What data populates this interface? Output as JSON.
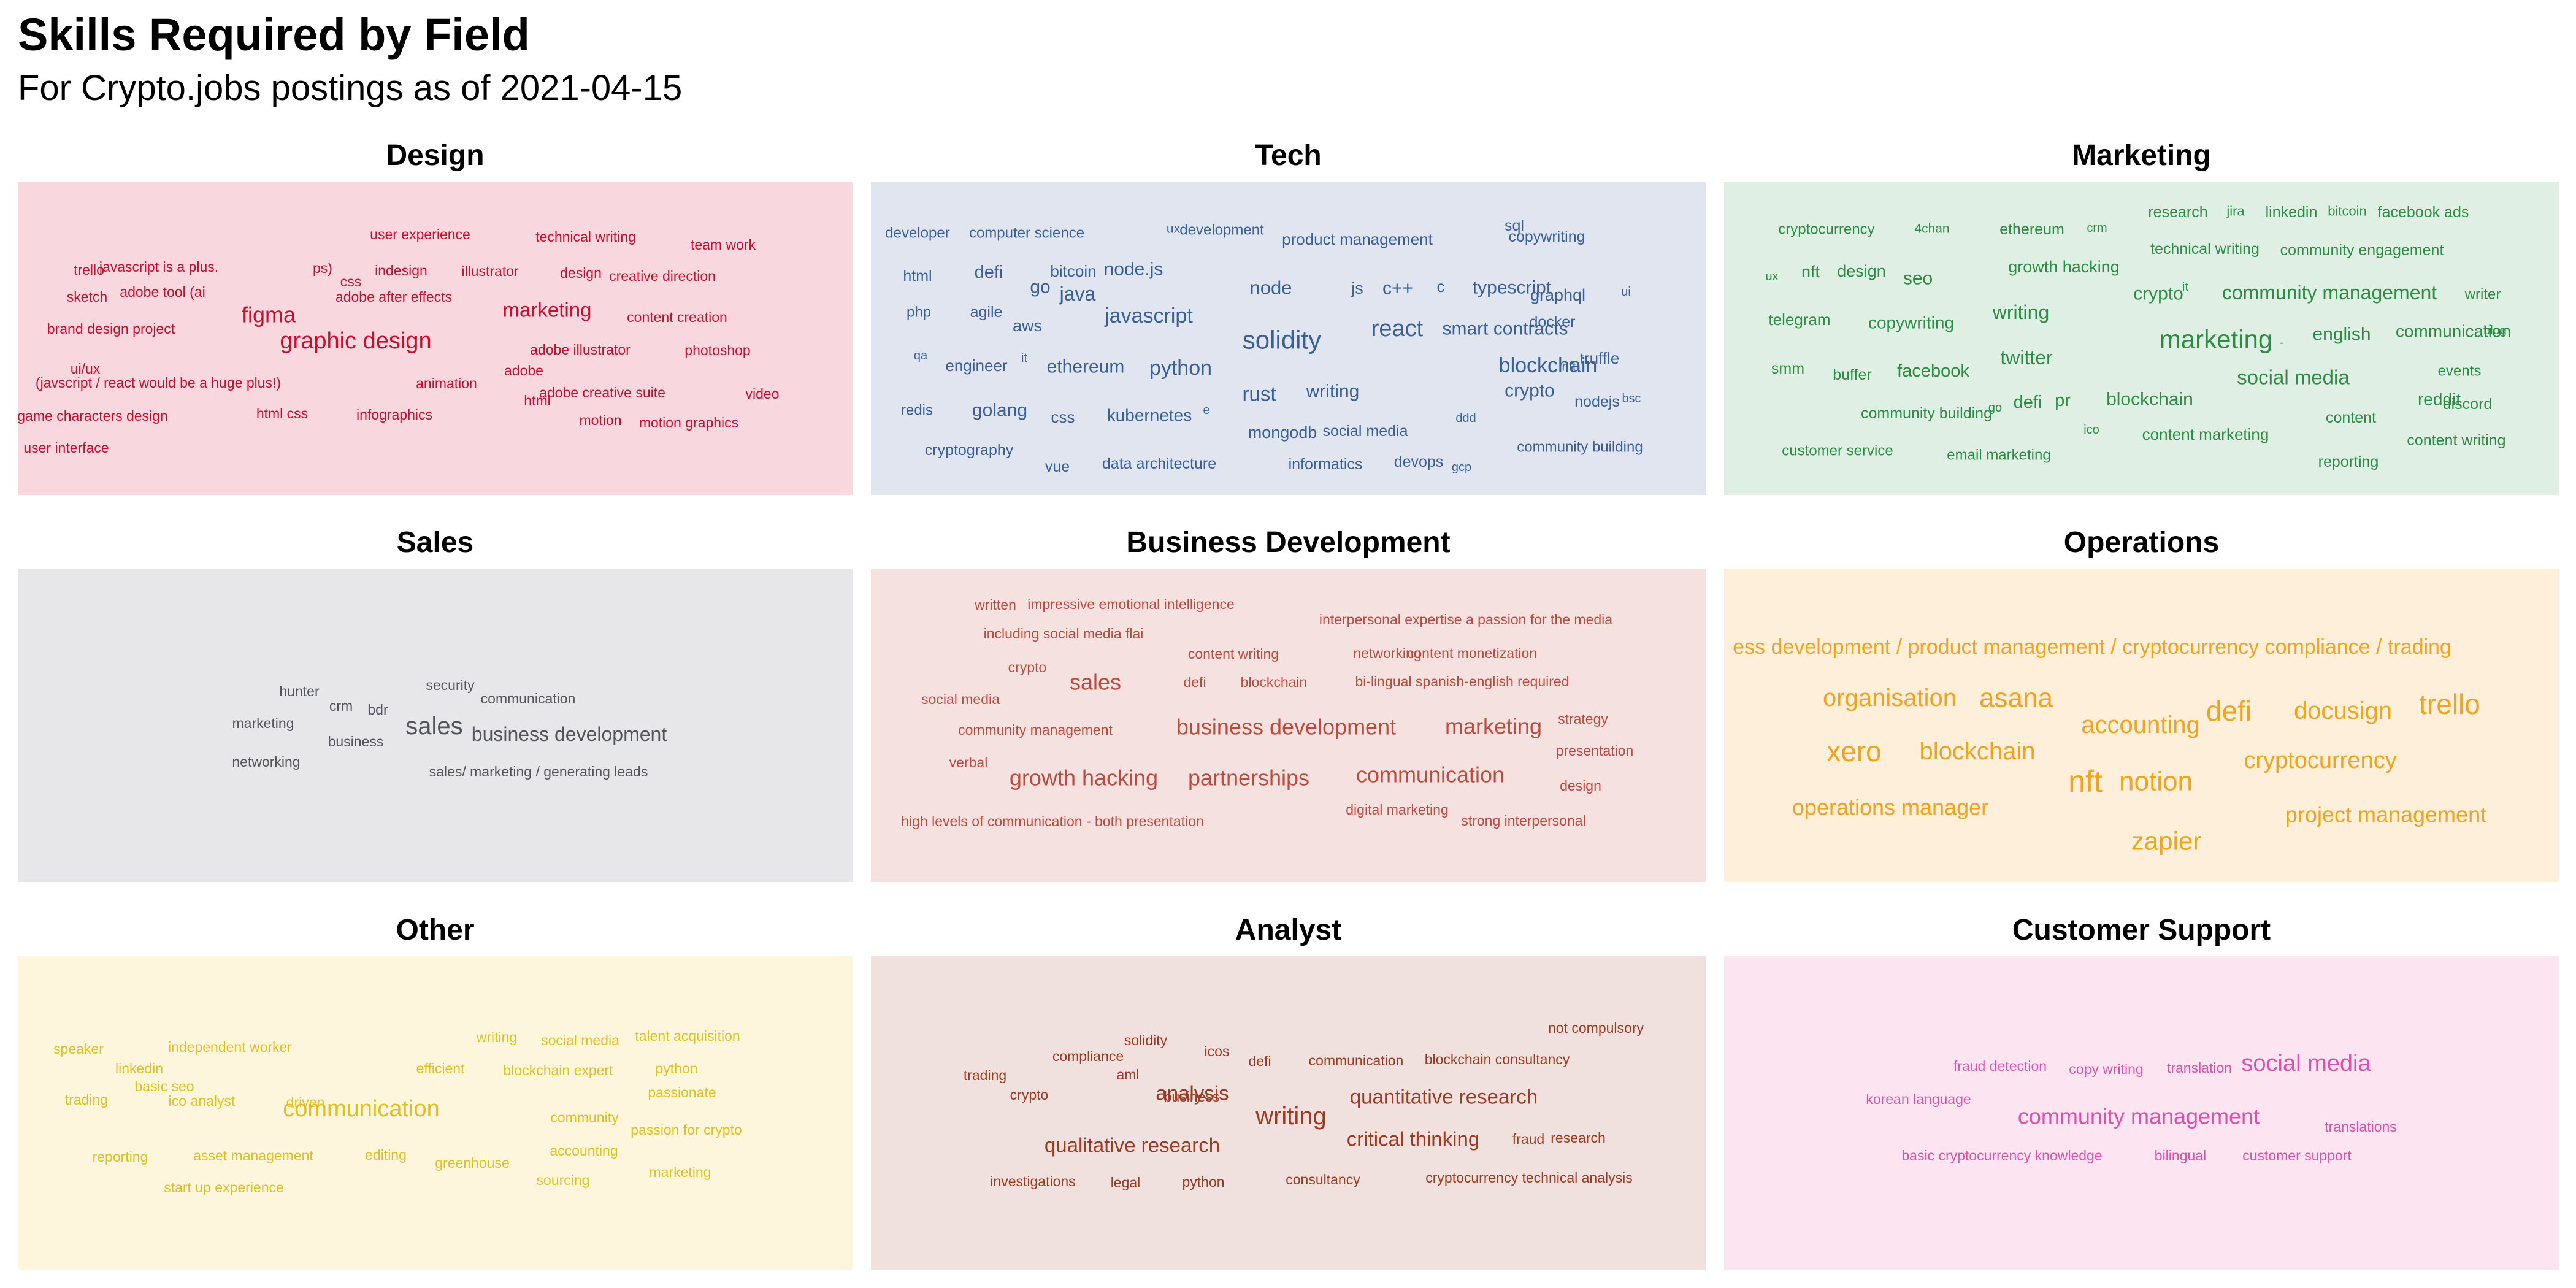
{
  "title": "Skills Required by Field",
  "subtitle": "For Crypto.jobs postings as of 2021-04-15",
  "chart_data": [
    {
      "type": "wordcloud",
      "title": "Design",
      "bg": "#f8d7de",
      "color": "#c8102e",
      "words": [
        {
          "text": "user experience",
          "size": 23
        },
        {
          "text": "technical writing",
          "size": 23
        },
        {
          "text": "team work",
          "size": 23
        },
        {
          "text": "trello",
          "size": 23
        },
        {
          "text": "javascript is a plus.",
          "size": 23
        },
        {
          "text": "ps)",
          "size": 23
        },
        {
          "text": "indesign",
          "size": 23
        },
        {
          "text": "illustrator",
          "size": 23
        },
        {
          "text": "design",
          "size": 23
        },
        {
          "text": "css",
          "size": 23
        },
        {
          "text": "creative direction",
          "size": 23
        },
        {
          "text": "adobe tool (ai",
          "size": 23
        },
        {
          "text": "sketch",
          "size": 23
        },
        {
          "text": "adobe after effects",
          "size": 23
        },
        {
          "text": "figma",
          "size": 36
        },
        {
          "text": "marketing",
          "size": 33
        },
        {
          "text": "content creation",
          "size": 23
        },
        {
          "text": "brand design project",
          "size": 23
        },
        {
          "text": "graphic design",
          "size": 38
        },
        {
          "text": "adobe illustrator",
          "size": 23
        },
        {
          "text": "photoshop",
          "size": 23
        },
        {
          "text": "ui/ux",
          "size": 23
        },
        {
          "text": "adobe",
          "size": 23
        },
        {
          "text": "(javscript / react would be a huge plus!)",
          "size": 23
        },
        {
          "text": "animation",
          "size": 23
        },
        {
          "text": "adobe creative suite",
          "size": 23
        },
        {
          "text": "video",
          "size": 23
        },
        {
          "text": "html",
          "size": 23
        },
        {
          "text": "game characters design",
          "size": 23
        },
        {
          "text": "html css",
          "size": 23
        },
        {
          "text": "infographics",
          "size": 23
        },
        {
          "text": "motion",
          "size": 23
        },
        {
          "text": "motion graphics",
          "size": 23
        },
        {
          "text": "user interface",
          "size": 23
        }
      ]
    },
    {
      "type": "wordcloud",
      "title": "Tech",
      "bg": "#e1e5ef",
      "color": "#3a5f96",
      "words": [
        {
          "text": "developer",
          "size": 24
        },
        {
          "text": "computer science",
          "size": 24
        },
        {
          "text": "ux",
          "size": 21
        },
        {
          "text": "development",
          "size": 24
        },
        {
          "text": "product management",
          "size": 26
        },
        {
          "text": "sql",
          "size": 25
        },
        {
          "text": "copywriting",
          "size": 25
        },
        {
          "text": "html",
          "size": 25
        },
        {
          "text": "defi",
          "size": 29
        },
        {
          "text": "bitcoin",
          "size": 26
        },
        {
          "text": "node.js",
          "size": 30
        },
        {
          "text": "go",
          "size": 30
        },
        {
          "text": "java",
          "size": 32
        },
        {
          "text": "node",
          "size": 31
        },
        {
          "text": "js",
          "size": 27
        },
        {
          "text": "c++",
          "size": 30
        },
        {
          "text": "c",
          "size": 26
        },
        {
          "text": "typescript",
          "size": 30
        },
        {
          "text": "graphql",
          "size": 27
        },
        {
          "text": "ui",
          "size": 20
        },
        {
          "text": "php",
          "size": 24
        },
        {
          "text": "agile",
          "size": 25
        },
        {
          "text": "javascript",
          "size": 34
        },
        {
          "text": "aws",
          "size": 27
        },
        {
          "text": "react",
          "size": 38
        },
        {
          "text": "solidity",
          "size": 42
        },
        {
          "text": "smart contracts",
          "size": 30
        },
        {
          "text": "docker",
          "size": 25
        },
        {
          "text": "qa",
          "size": 20
        },
        {
          "text": "engineer",
          "size": 26
        },
        {
          "text": "it",
          "size": 20
        },
        {
          "text": "ethereum",
          "size": 30
        },
        {
          "text": "python",
          "size": 34
        },
        {
          "text": "blockchain",
          "size": 34
        },
        {
          "text": "nft",
          "size": 21
        },
        {
          "text": "truffle",
          "size": 26
        },
        {
          "text": "rust",
          "size": 33
        },
        {
          "text": "writing",
          "size": 30
        },
        {
          "text": "crypto",
          "size": 30
        },
        {
          "text": "nodejs",
          "size": 25
        },
        {
          "text": "bsc",
          "size": 20
        },
        {
          "text": "redis",
          "size": 24
        },
        {
          "text": "golang",
          "size": 30
        },
        {
          "text": "css",
          "size": 26
        },
        {
          "text": "kubernetes",
          "size": 28
        },
        {
          "text": "e",
          "size": 20
        },
        {
          "text": "mongodb",
          "size": 27
        },
        {
          "text": "social media",
          "size": 25
        },
        {
          "text": "ddd",
          "size": 20
        },
        {
          "text": "cryptography",
          "size": 25
        },
        {
          "text": "community building",
          "size": 24
        },
        {
          "text": "vue",
          "size": 25
        },
        {
          "text": "data architecture",
          "size": 25
        },
        {
          "text": "informatics",
          "size": 25
        },
        {
          "text": "devops",
          "size": 25
        },
        {
          "text": "gcp",
          "size": 20
        }
      ]
    },
    {
      "type": "wordcloud",
      "title": "Marketing",
      "bg": "#e0efe4",
      "color": "#2e8b45",
      "words": [
        {
          "text": "research",
          "size": 25
        },
        {
          "text": "jira",
          "size": 22
        },
        {
          "text": "linkedin",
          "size": 25
        },
        {
          "text": "bitcoin",
          "size": 22
        },
        {
          "text": "facebook ads",
          "size": 25
        },
        {
          "text": "cryptocurrency",
          "size": 24
        },
        {
          "text": "4chan",
          "size": 21
        },
        {
          "text": "ethereum",
          "size": 25
        },
        {
          "text": "crm",
          "size": 20
        },
        {
          "text": "technical writing",
          "size": 25
        },
        {
          "text": "community engagement",
          "size": 25
        },
        {
          "text": "ux",
          "size": 20
        },
        {
          "text": "nft",
          "size": 27
        },
        {
          "text": "design",
          "size": 27
        },
        {
          "text": "seo",
          "size": 30
        },
        {
          "text": "growth hacking",
          "size": 27
        },
        {
          "text": "crypto",
          "size": 30
        },
        {
          "text": "it",
          "size": 20
        },
        {
          "text": "community management",
          "size": 32
        },
        {
          "text": "writer",
          "size": 24
        },
        {
          "text": "telegram",
          "size": 26
        },
        {
          "text": "copywriting",
          "size": 28
        },
        {
          "text": "writing",
          "size": 32
        },
        {
          "text": "marketing",
          "size": 42
        },
        {
          "text": "-",
          "size": 20
        },
        {
          "text": "english",
          "size": 30
        },
        {
          "text": "communication",
          "size": 28
        },
        {
          "text": "blog",
          "size": 20
        },
        {
          "text": "smm",
          "size": 25
        },
        {
          "text": "buffer",
          "size": 25
        },
        {
          "text": "facebook",
          "size": 29
        },
        {
          "text": "twitter",
          "size": 32
        },
        {
          "text": "social media",
          "size": 33
        },
        {
          "text": "events",
          "size": 24
        },
        {
          "text": "community building",
          "size": 25
        },
        {
          "text": "go",
          "size": 20
        },
        {
          "text": "defi",
          "size": 29
        },
        {
          "text": "pr",
          "size": 29
        },
        {
          "text": "blockchain",
          "size": 30
        },
        {
          "text": "reddit",
          "size": 28
        },
        {
          "text": "discord",
          "size": 25
        },
        {
          "text": "content",
          "size": 25
        },
        {
          "text": "ico",
          "size": 20
        },
        {
          "text": "content marketing",
          "size": 26
        },
        {
          "text": "content writing",
          "size": 25
        },
        {
          "text": "customer service",
          "size": 24
        },
        {
          "text": "email marketing",
          "size": 24
        },
        {
          "text": "reporting",
          "size": 25
        }
      ]
    },
    {
      "type": "wordcloud",
      "title": "Sales",
      "bg": "#e7e7e9",
      "color": "#54545e",
      "words": [
        {
          "text": "security",
          "size": 23
        },
        {
          "text": "hunter",
          "size": 23
        },
        {
          "text": "communication",
          "size": 23
        },
        {
          "text": "crm",
          "size": 23
        },
        {
          "text": "bdr",
          "size": 23
        },
        {
          "text": "marketing",
          "size": 23
        },
        {
          "text": "sales",
          "size": 40
        },
        {
          "text": "business development",
          "size": 32
        },
        {
          "text": "business",
          "size": 23
        },
        {
          "text": "networking",
          "size": 23
        },
        {
          "text": "sales/ marketing / generating leads",
          "size": 23
        }
      ]
    },
    {
      "type": "wordcloud",
      "title": "Business Development",
      "bg": "#f5e1df",
      "color": "#bb4b3f",
      "words": [
        {
          "text": "written",
          "size": 23
        },
        {
          "text": "impressive emotional intelligence",
          "size": 23
        },
        {
          "text": "interpersonal expertise a passion for the media",
          "size": 23
        },
        {
          "text": "including social media flai",
          "size": 23
        },
        {
          "text": "content writing",
          "size": 23
        },
        {
          "text": "networking",
          "size": 23
        },
        {
          "text": "content monetization",
          "size": 23
        },
        {
          "text": "crypto",
          "size": 23
        },
        {
          "text": "sales",
          "size": 36
        },
        {
          "text": "defi",
          "size": 23
        },
        {
          "text": "blockchain",
          "size": 23
        },
        {
          "text": "bi-lingual spanish-english required",
          "size": 23
        },
        {
          "text": "social media",
          "size": 23
        },
        {
          "text": "strategy",
          "size": 23
        },
        {
          "text": "community management",
          "size": 23
        },
        {
          "text": "business development",
          "size": 36
        },
        {
          "text": "marketing",
          "size": 36
        },
        {
          "text": "presentation",
          "size": 23
        },
        {
          "text": "verbal",
          "size": 23
        },
        {
          "text": "growth hacking",
          "size": 36
        },
        {
          "text": "partnerships",
          "size": 36
        },
        {
          "text": "communication",
          "size": 36
        },
        {
          "text": "design",
          "size": 23
        },
        {
          "text": "digital marketing",
          "size": 23
        },
        {
          "text": "high levels of communication - both presentation",
          "size": 23
        },
        {
          "text": "strong interpersonal",
          "size": 23
        }
      ]
    },
    {
      "type": "wordcloud",
      "title": "Operations",
      "bg": "#fdefd9",
      "color": "#f0a320",
      "words": [
        {
          "text": "ess development / product management / cryptocurrency compliance / trading",
          "size": 34
        },
        {
          "text": "organisation",
          "size": 40
        },
        {
          "text": "asana",
          "size": 44
        },
        {
          "text": "accounting",
          "size": 40
        },
        {
          "text": "defi",
          "size": 46
        },
        {
          "text": "docusign",
          "size": 40
        },
        {
          "text": "trello",
          "size": 46
        },
        {
          "text": "xero",
          "size": 46
        },
        {
          "text": "blockchain",
          "size": 40
        },
        {
          "text": "cryptocurrency",
          "size": 38
        },
        {
          "text": "nft",
          "size": 50
        },
        {
          "text": "notion",
          "size": 44
        },
        {
          "text": "operations manager",
          "size": 36
        },
        {
          "text": "project management",
          "size": 36
        },
        {
          "text": "zapier",
          "size": 42
        }
      ]
    },
    {
      "type": "wordcloud",
      "title": "Other",
      "bg": "#fdf6dc",
      "color": "#e0c020",
      "words": [
        {
          "text": "writing",
          "size": 23
        },
        {
          "text": "social media",
          "size": 23
        },
        {
          "text": "talent acquisition",
          "size": 23
        },
        {
          "text": "speaker",
          "size": 23
        },
        {
          "text": "independent worker",
          "size": 23
        },
        {
          "text": "linkedin",
          "size": 23
        },
        {
          "text": "efficient",
          "size": 23
        },
        {
          "text": "blockchain expert",
          "size": 23
        },
        {
          "text": "python",
          "size": 23
        },
        {
          "text": "basic seo",
          "size": 23
        },
        {
          "text": "passionate",
          "size": 23
        },
        {
          "text": "trading",
          "size": 23
        },
        {
          "text": "ico analyst",
          "size": 23
        },
        {
          "text": "driven",
          "size": 23
        },
        {
          "text": "communication",
          "size": 38
        },
        {
          "text": "community",
          "size": 23
        },
        {
          "text": "passion for crypto",
          "size": 23
        },
        {
          "text": "reporting",
          "size": 23
        },
        {
          "text": "asset management",
          "size": 23
        },
        {
          "text": "editing",
          "size": 23
        },
        {
          "text": "accounting",
          "size": 23
        },
        {
          "text": "greenhouse",
          "size": 23
        },
        {
          "text": "marketing",
          "size": 23
        },
        {
          "text": "start up experience",
          "size": 23
        },
        {
          "text": "sourcing",
          "size": 23
        }
      ]
    },
    {
      "type": "wordcloud",
      "title": "Analyst",
      "bg": "#f0e0de",
      "color": "#9c3a22",
      "words": [
        {
          "text": "not compulsory",
          "size": 23
        },
        {
          "text": "solidity",
          "size": 23
        },
        {
          "text": "icos",
          "size": 23
        },
        {
          "text": "compliance",
          "size": 23
        },
        {
          "text": "defi",
          "size": 23
        },
        {
          "text": "communication",
          "size": 23
        },
        {
          "text": "blockchain consultancy",
          "size": 23
        },
        {
          "text": "trading",
          "size": 23
        },
        {
          "text": "aml",
          "size": 23
        },
        {
          "text": "crypto",
          "size": 23
        },
        {
          "text": "analysis",
          "size": 33
        },
        {
          "text": "business",
          "size": 23
        },
        {
          "text": "quantitative research",
          "size": 33
        },
        {
          "text": "writing",
          "size": 40
        },
        {
          "text": "qualitative research",
          "size": 33
        },
        {
          "text": "critical thinking",
          "size": 33
        },
        {
          "text": "fraud",
          "size": 23
        },
        {
          "text": "research",
          "size": 23
        },
        {
          "text": "investigations",
          "size": 23
        },
        {
          "text": "legal",
          "size": 23
        },
        {
          "text": "python",
          "size": 23
        },
        {
          "text": "consultancy",
          "size": 23
        },
        {
          "text": "cryptocurrency technical analysis",
          "size": 23
        }
      ]
    },
    {
      "type": "wordcloud",
      "title": "Customer Support",
      "bg": "#fce4f0",
      "color": "#e050a8",
      "words": [
        {
          "text": "fraud detection",
          "size": 23
        },
        {
          "text": "copy writing",
          "size": 23
        },
        {
          "text": "translation",
          "size": 23
        },
        {
          "text": "social media",
          "size": 38
        },
        {
          "text": "korean language",
          "size": 23
        },
        {
          "text": "community management",
          "size": 36
        },
        {
          "text": "translations",
          "size": 23
        },
        {
          "text": "basic cryptocurrency knowledge",
          "size": 23
        },
        {
          "text": "bilingual",
          "size": 23
        },
        {
          "text": "customer support",
          "size": 23
        }
      ]
    }
  ]
}
